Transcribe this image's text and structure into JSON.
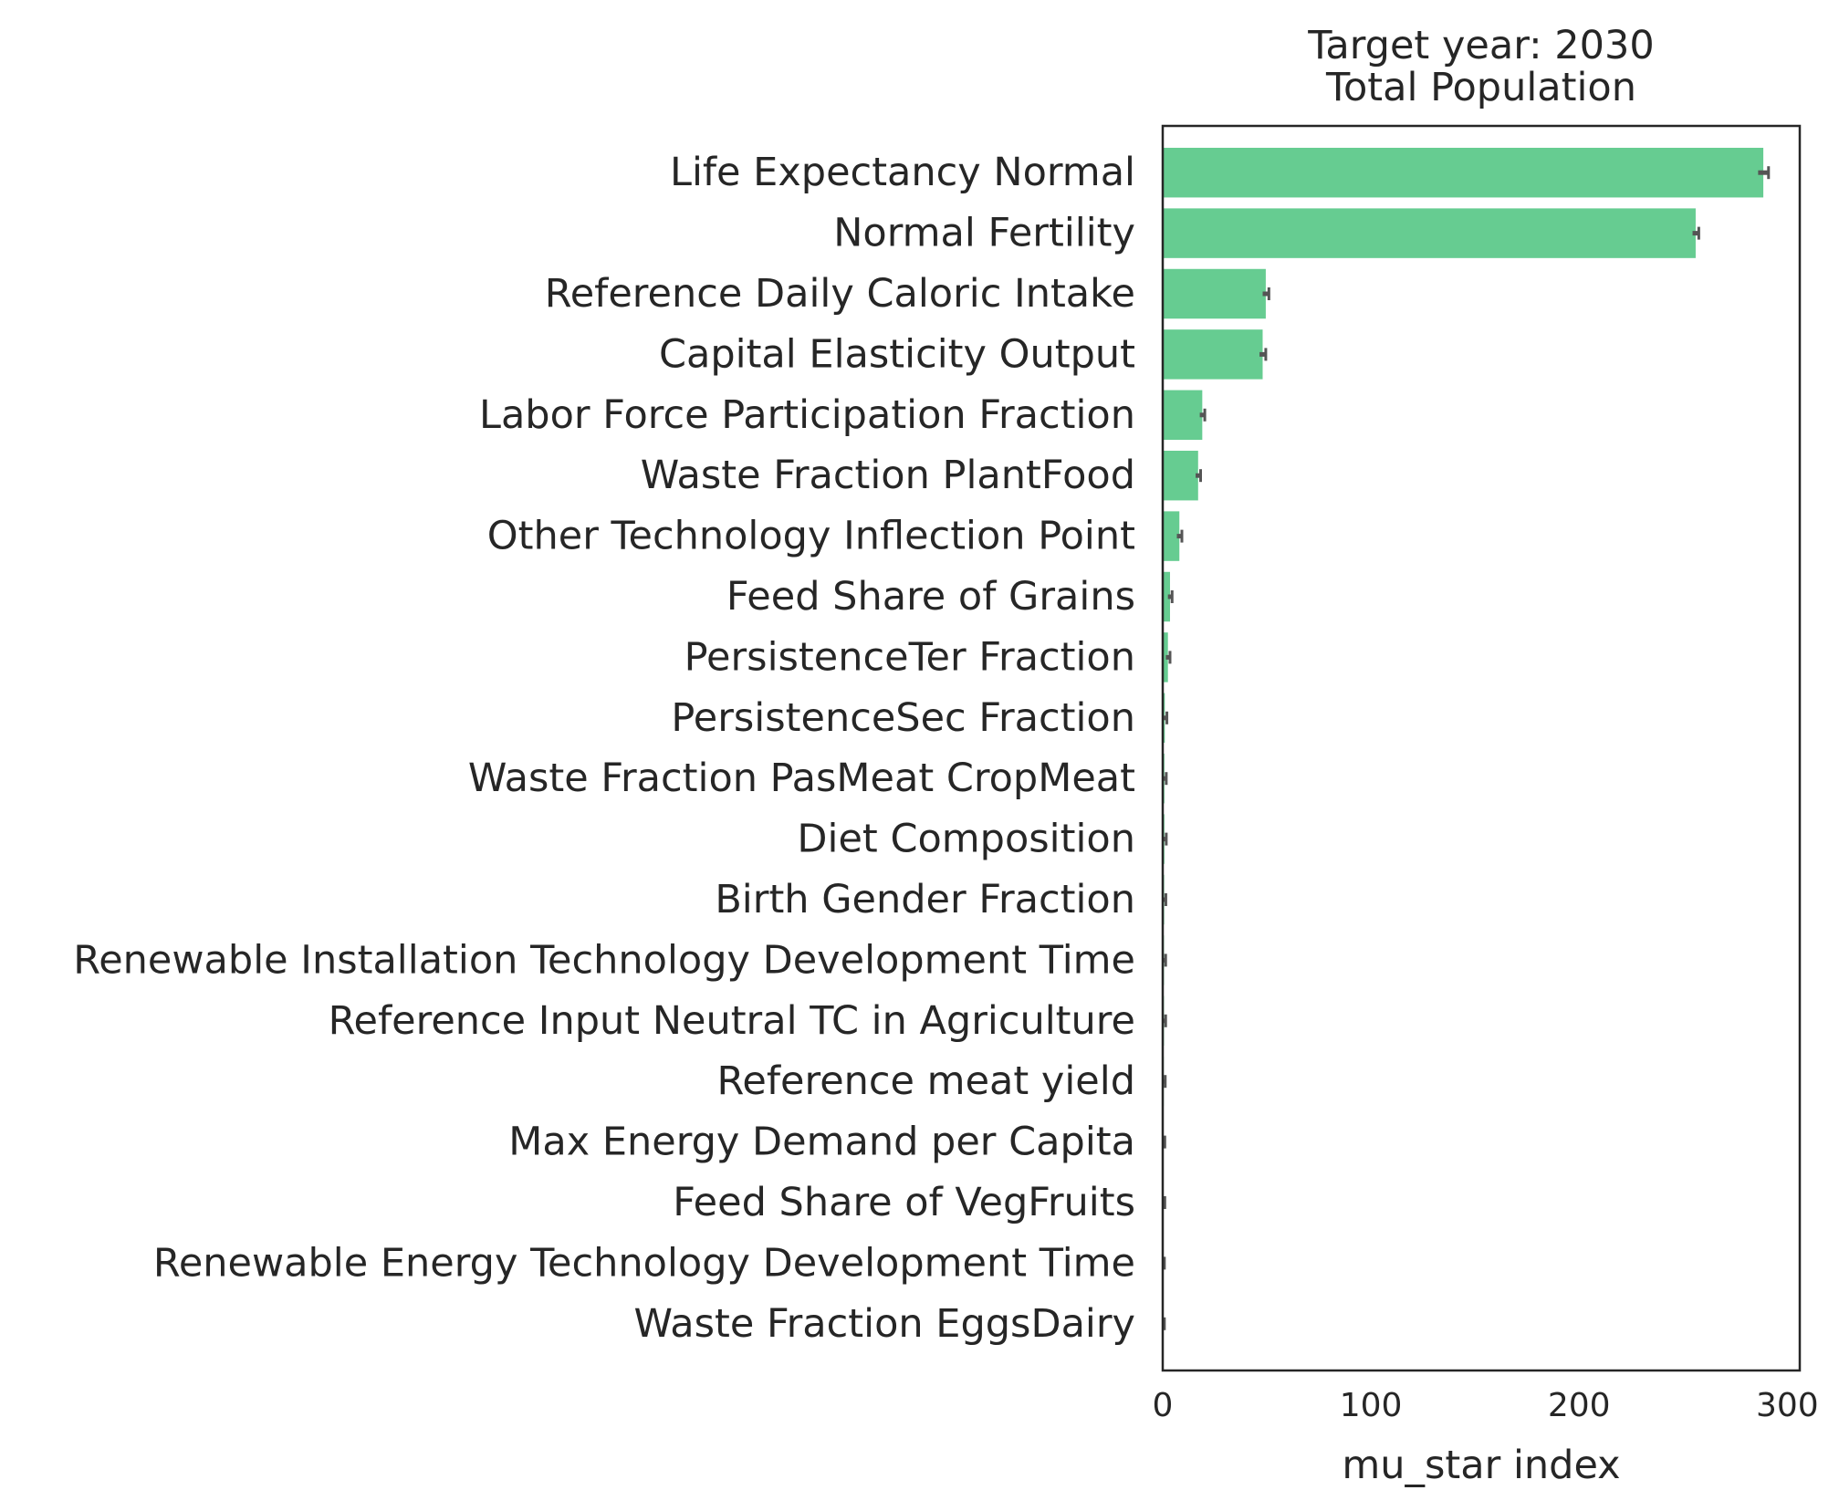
{
  "chart_data": {
    "type": "bar",
    "orientation": "horizontal",
    "title": "Target year: 2030",
    "subtitle": "Total Population",
    "xlabel": "mu_star index",
    "ylabel": "",
    "xlim": [
      0,
      306
    ],
    "xticks": [
      "0",
      "100",
      "200",
      "300"
    ],
    "grid": false,
    "legend": "none",
    "bar_color": "#66cc91",
    "error_color": "#555555",
    "categories": [
      "Life Expectancy Normal",
      "Normal Fertility",
      "Reference Daily Caloric Intake",
      "Capital Elasticity Output",
      "Labor Force Participation Fraction",
      "Waste Fraction PlantFood",
      "Other Technology Inflection Point",
      "Feed Share of Grains",
      "PersistenceTer Fraction",
      "PersistenceSec Fraction",
      "Waste Fraction PasMeat CropMeat",
      "Diet Composition",
      "Birth Gender Fraction",
      "Renewable Installation Technology Development Time",
      "Reference Input Neutral TC in Agriculture",
      "Reference meat yield",
      "Max Energy Demand per Capita",
      "Feed Share of VegFruits",
      "Renewable Energy Technology Development Time",
      "Waste Fraction EggsDairy"
    ],
    "values": [
      288.5,
      256.0,
      49.5,
      48.0,
      19.0,
      17.0,
      8.0,
      3.5,
      2.5,
      1.0,
      0.8,
      0.8,
      0.7,
      0.6,
      0.6,
      0.5,
      0.4,
      0.4,
      0.3,
      0.3
    ],
    "errors": [
      2.5,
      1.5,
      1.5,
      1.5,
      1.2,
      1.2,
      1.2,
      1.0,
      1.0,
      1.0,
      0.9,
      0.9,
      0.8,
      0.8,
      0.8,
      0.7,
      0.6,
      0.6,
      0.5,
      0.5
    ]
  }
}
